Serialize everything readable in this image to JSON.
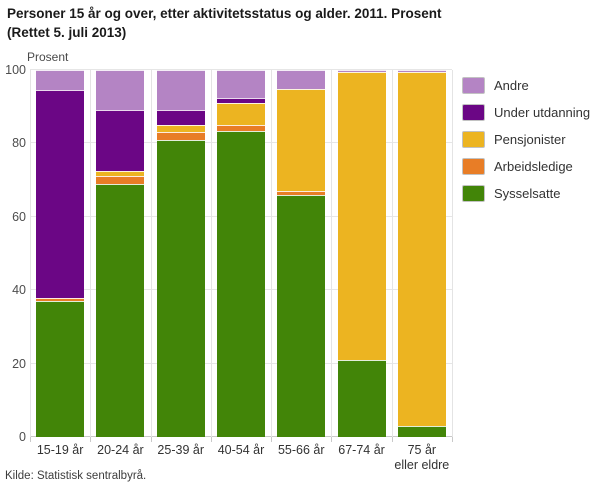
{
  "title_line1": "Personer 15 år og over, etter aktivitetsstatus og alder. 2011. Prosent",
  "title_line2": "(Rettet 5. juli 2013)",
  "source": "Kilde: Statistisk sentralbyrå.",
  "colors": {
    "andre": "#b484c4",
    "under_utdanning": "#6b0685",
    "pensjonister": "#ecb421",
    "arbeidsledige": "#e87d26",
    "sysselsatte": "#428508",
    "gridline": "#e6e6e6",
    "axis": "#c9c9c9"
  },
  "chart_data": {
    "type": "bar",
    "stacked": true,
    "title": "Personer 15 år og over, etter aktivitetsstatus og alder. 2011. Prosent (Rettet 5. juli 2013)",
    "xlabel": "",
    "ylabel": "Prosent",
    "ylim": [
      0,
      100
    ],
    "yticks": [
      0,
      20,
      40,
      60,
      80,
      100
    ],
    "grid": true,
    "legend_position": "right",
    "stack_order_note": "Stacked bottom-to-top: Sysselsatte, Arbeidsledige, Pensjonister, Under utdanning, Andre (legend lists top of stack first)",
    "categories": [
      "15-19 år",
      "20-24 år",
      "25-39 år",
      "40-54 år",
      "55-66 år",
      "67-74 år",
      "75 år\neller eldre"
    ],
    "series": [
      {
        "name": "Andre",
        "color": "#b484c4",
        "values": [
          5.5,
          11.0,
          11.0,
          7.5,
          5.2,
          0.5,
          0.5
        ]
      },
      {
        "name": "Under utdanning",
        "color": "#6b0685",
        "values": [
          56.5,
          16.5,
          4.0,
          1.5,
          0.0,
          0.0,
          0.0
        ]
      },
      {
        "name": "Pensjonister",
        "color": "#ecb421",
        "values": [
          0.0,
          1.5,
          2.0,
          6.0,
          27.8,
          78.5,
          96.5
        ]
      },
      {
        "name": "Arbeidsledige",
        "color": "#e87d26",
        "values": [
          1.0,
          2.0,
          2.0,
          1.5,
          1.0,
          0.0,
          0.0
        ]
      },
      {
        "name": "Sysselsatte",
        "color": "#428508",
        "values": [
          37.0,
          69.0,
          81.0,
          83.5,
          66.0,
          21.0,
          3.0
        ]
      }
    ]
  }
}
